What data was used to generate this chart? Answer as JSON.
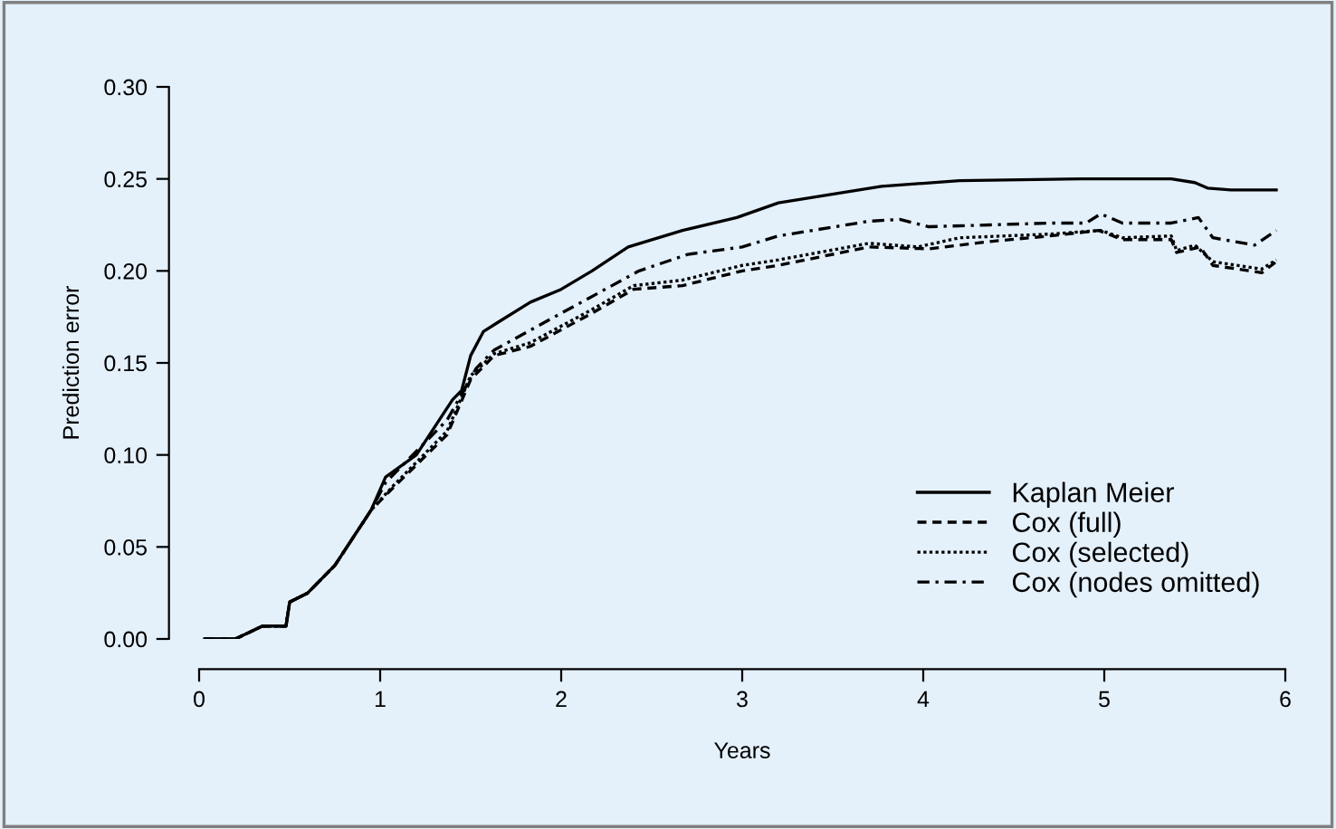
{
  "chart_data": {
    "type": "line",
    "xlabel": "Years",
    "ylabel": "Prediction error",
    "xlim": [
      0,
      6
    ],
    "ylim": [
      0,
      0.3
    ],
    "xticks": [
      0,
      1,
      2,
      3,
      4,
      5,
      6
    ],
    "yticks": [
      {
        "value": 0,
        "label": "0.00"
      },
      {
        "value": 0.05,
        "label": "0.05"
      },
      {
        "value": 0.1,
        "label": "0.10"
      },
      {
        "value": 0.15,
        "label": "0.15"
      },
      {
        "value": 0.2,
        "label": "0.20"
      },
      {
        "value": 0.25,
        "label": "0.25"
      },
      {
        "value": 0.3,
        "label": "0.30"
      }
    ],
    "grid": false,
    "legend": "bottom right",
    "marker": "none",
    "series": [
      {
        "name": "Kaplan Meier",
        "color": "#000000",
        "line_style": "solid",
        "x": [
          0.03,
          0.2,
          0.35,
          0.48,
          0.5,
          0.6,
          0.75,
          0.85,
          0.95,
          1.03,
          1.2,
          1.3,
          1.4,
          1.45,
          1.5,
          1.57,
          1.65,
          1.83,
          2.0,
          2.17,
          2.37,
          2.67,
          2.97,
          3.2,
          3.77,
          4.2,
          4.87,
          5.37,
          5.5,
          5.57,
          5.7,
          5.95
        ],
        "values": [
          0,
          0,
          0.007,
          0.007,
          0.02,
          0.025,
          0.04,
          0.055,
          0.07,
          0.088,
          0.1,
          0.115,
          0.13,
          0.135,
          0.154,
          0.167,
          0.172,
          0.183,
          0.19,
          0.2,
          0.213,
          0.222,
          0.229,
          0.237,
          0.246,
          0.249,
          0.25,
          0.25,
          0.248,
          0.245,
          0.244,
          0.244
        ]
      },
      {
        "name": "Cox (full)",
        "color": "#000000",
        "line_style": "dashed",
        "x": [
          0.03,
          0.2,
          0.35,
          0.48,
          0.5,
          0.6,
          0.75,
          0.85,
          0.95,
          1.07,
          1.37,
          1.5,
          1.63,
          1.83,
          2.17,
          2.4,
          2.67,
          3.0,
          3.2,
          3.7,
          4.03,
          4.37,
          4.7,
          4.97,
          5.1,
          5.37,
          5.4,
          5.53,
          5.6,
          5.87,
          5.95
        ],
        "values": [
          0,
          0,
          0.007,
          0.007,
          0.02,
          0.025,
          0.04,
          0.055,
          0.07,
          0.082,
          0.111,
          0.141,
          0.154,
          0.159,
          0.177,
          0.19,
          0.192,
          0.2,
          0.203,
          0.213,
          0.212,
          0.216,
          0.219,
          0.222,
          0.217,
          0.217,
          0.21,
          0.213,
          0.203,
          0.199,
          0.205
        ]
      },
      {
        "name": "Cox (selected)",
        "color": "#000000",
        "line_style": "dotted",
        "x": [
          0.03,
          0.2,
          0.35,
          0.48,
          0.5,
          0.6,
          0.75,
          0.85,
          0.95,
          1.07,
          1.37,
          1.5,
          1.63,
          1.83,
          2.17,
          2.4,
          2.67,
          3.0,
          3.2,
          3.7,
          3.97,
          4.2,
          4.7,
          4.98,
          5.1,
          5.37,
          5.4,
          5.5,
          5.6,
          5.87,
          5.95
        ],
        "values": [
          0,
          0,
          0.007,
          0.007,
          0.02,
          0.025,
          0.04,
          0.055,
          0.07,
          0.083,
          0.113,
          0.143,
          0.155,
          0.161,
          0.179,
          0.192,
          0.195,
          0.203,
          0.206,
          0.215,
          0.213,
          0.218,
          0.22,
          0.222,
          0.218,
          0.219,
          0.211,
          0.214,
          0.205,
          0.201,
          0.206
        ]
      },
      {
        "name": "Cox (nodes omitted)",
        "color": "#000000",
        "line_style": "dashdot",
        "x": [
          0.03,
          0.2,
          0.35,
          0.48,
          0.5,
          0.6,
          0.75,
          0.85,
          0.95,
          1.03,
          1.37,
          1.53,
          1.63,
          2.0,
          2.43,
          2.7,
          3.0,
          3.2,
          3.7,
          3.87,
          4.03,
          4.37,
          4.7,
          4.9,
          4.98,
          5.1,
          5.37,
          5.52,
          5.6,
          5.83,
          5.95
        ],
        "values": [
          0,
          0,
          0.007,
          0.007,
          0.02,
          0.025,
          0.04,
          0.055,
          0.07,
          0.085,
          0.119,
          0.147,
          0.157,
          0.177,
          0.2,
          0.209,
          0.213,
          0.219,
          0.227,
          0.228,
          0.224,
          0.225,
          0.226,
          0.226,
          0.231,
          0.226,
          0.226,
          0.229,
          0.218,
          0.214,
          0.222
        ]
      }
    ]
  }
}
